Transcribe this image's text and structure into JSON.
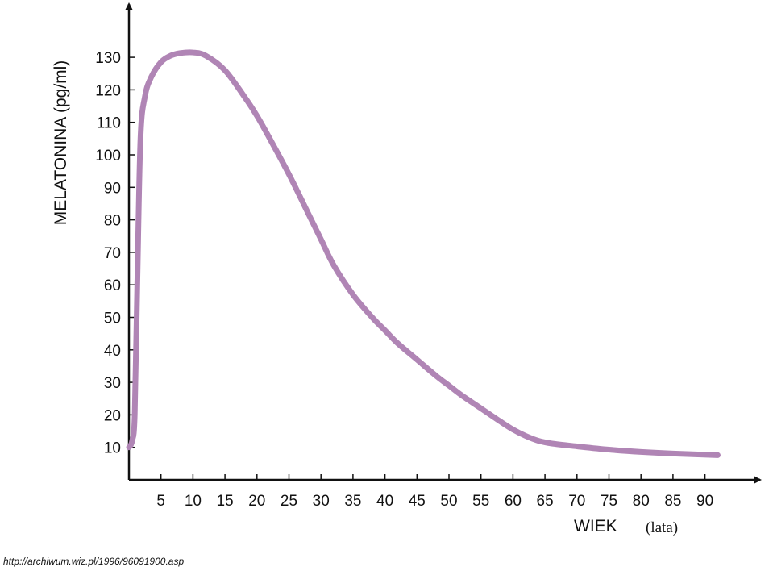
{
  "chart_data": {
    "type": "line",
    "title": "",
    "xlabel": "WIEK",
    "xlabel_unit": "(lata)",
    "ylabel": "MELATONINA (pg/ml)",
    "x_ticks": [
      5,
      10,
      15,
      20,
      25,
      30,
      35,
      40,
      45,
      50,
      55,
      60,
      65,
      70,
      75,
      80,
      85,
      90
    ],
    "y_ticks": [
      10,
      20,
      30,
      40,
      50,
      60,
      70,
      80,
      90,
      100,
      110,
      120,
      130
    ],
    "xlim": [
      0,
      97
    ],
    "ylim": [
      0,
      145
    ],
    "grid": false,
    "legend": "none",
    "line_color": "#b085b5",
    "series": [
      {
        "x": [
          0,
          0.5,
          0.9,
          1.3,
          1.8,
          2.5,
          3.5,
          5,
          6.5,
          8,
          10,
          12,
          15,
          18,
          20,
          22,
          25,
          28,
          30,
          32,
          35,
          38,
          40,
          42,
          45,
          48,
          50,
          52,
          55,
          58,
          60,
          62,
          64,
          66,
          70,
          75,
          80,
          85,
          92
        ],
        "y": [
          10,
          12,
          20,
          60,
          105,
          118,
          124,
          128.5,
          130.5,
          131.3,
          131.5,
          130.5,
          126,
          118,
          112,
          105,
          94,
          82,
          74,
          66,
          57,
          50,
          46,
          42,
          37,
          32,
          29,
          26,
          22,
          18,
          15.5,
          13.5,
          12,
          11.2,
          10.3,
          9.3,
          8.6,
          8.1,
          7.6
        ]
      }
    ]
  },
  "source_text": "http://archiwum.wiz.pl/1996/96091900.asp"
}
